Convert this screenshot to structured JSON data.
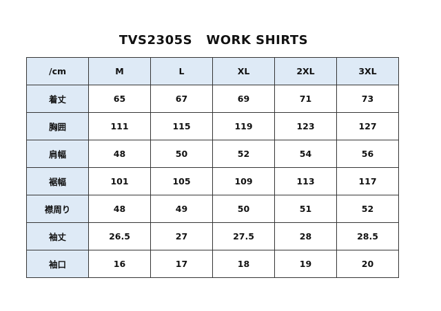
{
  "title": "TVS2305S   WORK SHIRTS",
  "header": [
    "/cm",
    "M",
    "L",
    "XL",
    "2XL",
    "3XL"
  ],
  "rows": [
    {
      "label": "着丈",
      "values": [
        "65",
        "67",
        "69",
        "71",
        "73"
      ]
    },
    {
      "label": "胸囲",
      "values": [
        "111",
        "115",
        "119",
        "123",
        "127"
      ]
    },
    {
      "label": "肩幅",
      "values": [
        "48",
        "50",
        "52",
        "54",
        "56"
      ]
    },
    {
      "label": "裾幅",
      "values": [
        "101",
        "105",
        "109",
        "113",
        "117"
      ]
    },
    {
      "label": "襟周り",
      "values": [
        "48",
        "49",
        "50",
        "51",
        "52"
      ]
    },
    {
      "label": "袖丈",
      "values": [
        "26.5",
        "27",
        "27.5",
        "28",
        "28.5"
      ]
    },
    {
      "label": "袖口",
      "values": [
        "16",
        "17",
        "18",
        "19",
        "20"
      ]
    }
  ],
  "colors": {
    "header_fill": "#deeaf6",
    "border": "#333333"
  }
}
